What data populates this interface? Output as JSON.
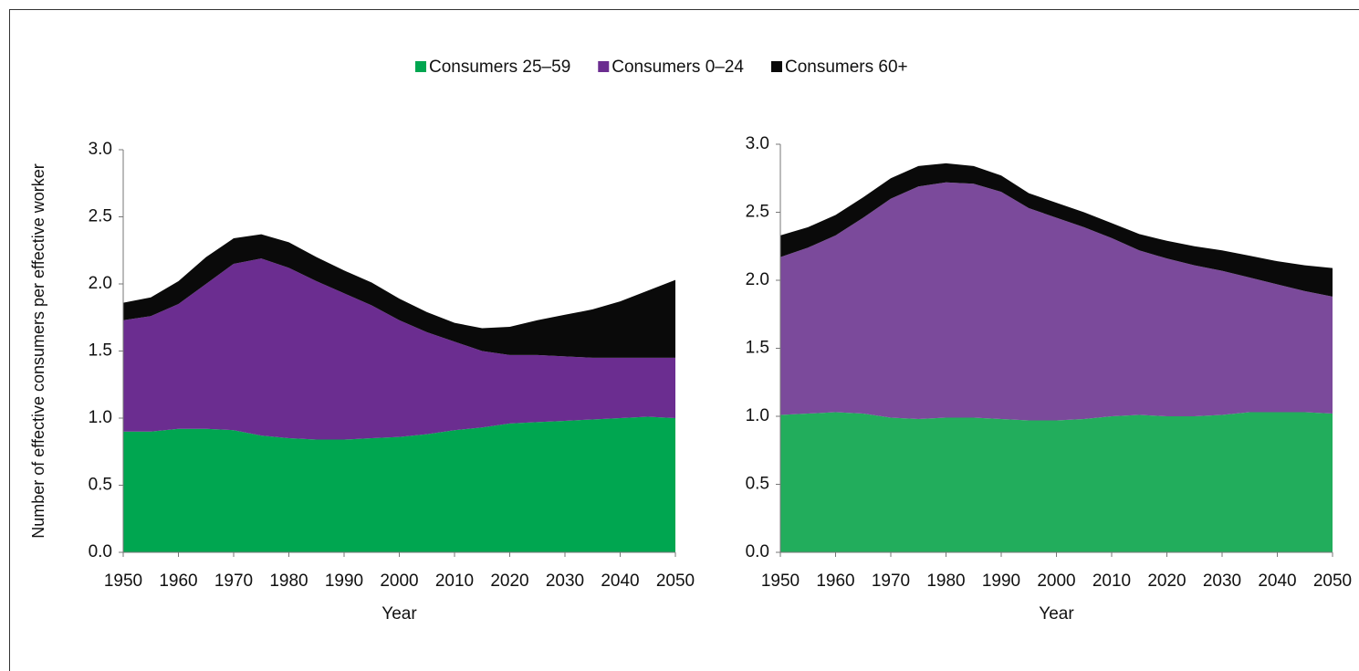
{
  "chart_data": [
    {
      "type": "stacked_area",
      "y_label": "Number of effective consumers per effective worker",
      "x_label": "Year",
      "x": [
        1950,
        1955,
        1960,
        1965,
        1970,
        1975,
        1980,
        1985,
        1990,
        1995,
        2000,
        2005,
        2010,
        2015,
        2020,
        2025,
        2030,
        2035,
        2040,
        2045,
        2050
      ],
      "xlim": [
        1950,
        2050
      ],
      "xticks": [
        1950,
        1960,
        1970,
        1980,
        1990,
        2000,
        2010,
        2020,
        2030,
        2040,
        2050
      ],
      "ylim": [
        0,
        3
      ],
      "yticks": [
        {
          "value": 0,
          "label": "0.0"
        },
        {
          "value": 0.5,
          "label": "0.5"
        },
        {
          "value": 1,
          "label": "1.0"
        },
        {
          "value": 1.5,
          "label": "1.5"
        },
        {
          "value": 2,
          "label": "2.0"
        },
        {
          "value": 2.5,
          "label": "2.5"
        },
        {
          "value": 3,
          "label": "3.0"
        }
      ],
      "series": [
        {
          "name": "Consumers 25–59",
          "color": "#00a650",
          "values": [
            0.9,
            0.9,
            0.92,
            0.92,
            0.91,
            0.87,
            0.85,
            0.84,
            0.84,
            0.85,
            0.86,
            0.88,
            0.91,
            0.93,
            0.96,
            0.97,
            0.98,
            0.99,
            1.0,
            1.01,
            1.0
          ]
        },
        {
          "name": "Consumers 0–24",
          "color": "#6b2d90",
          "values": [
            0.83,
            0.86,
            0.93,
            1.08,
            1.24,
            1.32,
            1.27,
            1.18,
            1.09,
            0.99,
            0.87,
            0.76,
            0.66,
            0.57,
            0.51,
            0.5,
            0.48,
            0.46,
            0.45,
            0.44,
            0.45
          ]
        },
        {
          "name": "Consumers 60+",
          "color": "#0a0a0a",
          "values": [
            0.13,
            0.14,
            0.17,
            0.2,
            0.19,
            0.18,
            0.19,
            0.18,
            0.17,
            0.17,
            0.16,
            0.15,
            0.14,
            0.17,
            0.21,
            0.26,
            0.31,
            0.36,
            0.42,
            0.5,
            0.58
          ]
        }
      ]
    },
    {
      "type": "stacked_area",
      "x_label": "Year",
      "x": [
        1950,
        1955,
        1960,
        1965,
        1970,
        1975,
        1980,
        1985,
        1990,
        1995,
        2000,
        2005,
        2010,
        2015,
        2020,
        2025,
        2030,
        2035,
        2040,
        2045,
        2050
      ],
      "xlim": [
        1950,
        2050
      ],
      "xticks": [
        1950,
        1960,
        1970,
        1980,
        1990,
        2000,
        2010,
        2020,
        2030,
        2040,
        2050
      ],
      "ylim": [
        0,
        3
      ],
      "yticks": [
        {
          "value": 0,
          "label": "0.0"
        },
        {
          "value": 0.5,
          "label": "0.5"
        },
        {
          "value": 1,
          "label": "1.0"
        },
        {
          "value": 1.5,
          "label": "1.5"
        },
        {
          "value": 2,
          "label": "2.0"
        },
        {
          "value": 2.5,
          "label": "2.5"
        },
        {
          "value": 3,
          "label": "3.0"
        }
      ],
      "series": [
        {
          "color": "#22ad5c",
          "values": [
            1.01,
            1.02,
            1.03,
            1.02,
            0.99,
            0.98,
            0.99,
            0.99,
            0.98,
            0.97,
            0.97,
            0.98,
            1.0,
            1.01,
            1.0,
            1.0,
            1.01,
            1.03,
            1.03,
            1.03,
            1.02
          ]
        },
        {
          "color": "#7b4a9b",
          "values": [
            1.16,
            1.22,
            1.3,
            1.44,
            1.61,
            1.71,
            1.73,
            1.72,
            1.67,
            1.56,
            1.49,
            1.41,
            1.31,
            1.21,
            1.16,
            1.11,
            1.06,
            0.99,
            0.94,
            0.89,
            0.86
          ]
        },
        {
          "color": "#0a0a0a",
          "values": [
            0.16,
            0.15,
            0.15,
            0.15,
            0.15,
            0.15,
            0.14,
            0.13,
            0.12,
            0.11,
            0.11,
            0.11,
            0.11,
            0.12,
            0.13,
            0.14,
            0.15,
            0.16,
            0.17,
            0.19,
            0.21
          ]
        }
      ]
    }
  ]
}
